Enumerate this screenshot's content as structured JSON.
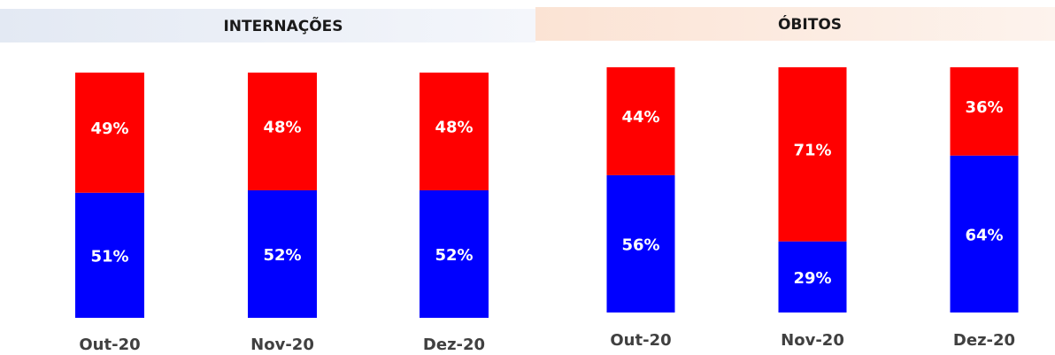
{
  "chart_data": [
    {
      "type": "stacked_bar",
      "title": "INTERNAÇÕES",
      "categories": [
        "Out-20",
        "Nov-20",
        "Dez-20"
      ],
      "ylim": [
        0,
        100
      ],
      "series": [
        {
          "color": "#0000ff",
          "values": [
            51,
            52,
            52
          ],
          "value_labels": [
            "51%",
            "52%",
            "52%"
          ]
        },
        {
          "color": "#ff0000",
          "values": [
            49,
            48,
            48
          ],
          "value_labels": [
            "49%",
            "48%",
            "48%"
          ]
        }
      ]
    },
    {
      "type": "stacked_bar",
      "title": "ÓBITOS",
      "categories": [
        "Out-20",
        "Nov-20",
        "Dez-20"
      ],
      "ylim": [
        0,
        100
      ],
      "series": [
        {
          "color": "#0000ff",
          "values": [
            56,
            29,
            64
          ],
          "value_labels": [
            "56%",
            "29%",
            "64%"
          ]
        },
        {
          "color": "#ff0000",
          "values": [
            44,
            71,
            36
          ],
          "value_labels": [
            "44%",
            "71%",
            "36%"
          ]
        }
      ]
    }
  ]
}
